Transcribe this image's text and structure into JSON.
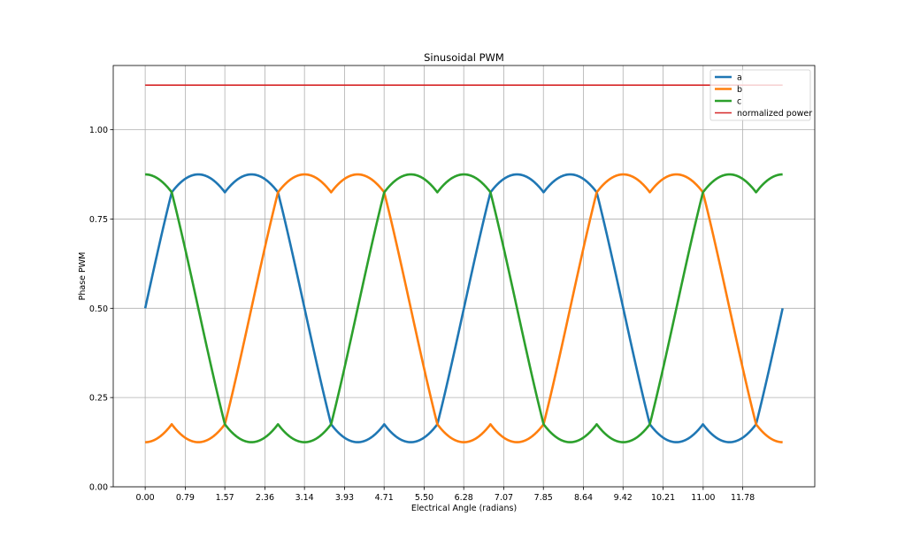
{
  "chart_data": {
    "type": "line",
    "title": "Sinusoidal PWM",
    "xlabel": "Electrical Angle (radians)",
    "ylabel": "Phase PWM",
    "xlim": [
      -0.63,
      13.2
    ],
    "ylim": [
      0,
      1.18
    ],
    "xticks": [
      "0.00",
      "0.79",
      "1.57",
      "2.36",
      "3.14",
      "3.93",
      "4.71",
      "5.50",
      "6.28",
      "7.07",
      "7.85",
      "8.64",
      "9.42",
      "10.21",
      "11.00",
      "11.78"
    ],
    "yticks": [
      "0.00",
      "0.25",
      "0.50",
      "0.75",
      "1.00"
    ],
    "grid": true,
    "legend_position": "top-right",
    "x_range": [
      0,
      12.566
    ],
    "series": [
      {
        "name": "a",
        "color": "#1f77b4",
        "formula": "svpwm",
        "phase_offset": 0
      },
      {
        "name": "b",
        "color": "#ff7f0e",
        "formula": "svpwm",
        "phase_offset": -2.0944
      },
      {
        "name": "c",
        "color": "#2ca02c",
        "formula": "svpwm",
        "phase_offset": 2.0944
      },
      {
        "name": "normalized power",
        "color": "#d62728",
        "formula": "constant",
        "value": 1.125
      }
    ]
  }
}
